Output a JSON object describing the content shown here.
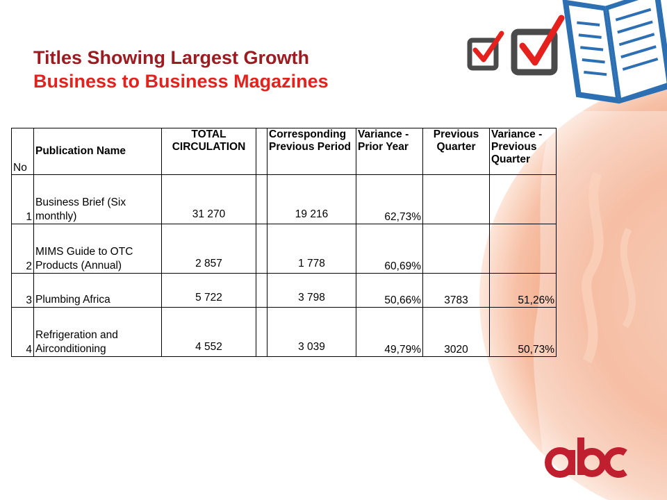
{
  "slide": {
    "title_line1": "Titles Showing Largest Growth",
    "title_line2": "Business to Business Magazines"
  },
  "table": {
    "headers": {
      "no": "No",
      "publication_name": "Publication Name",
      "total_circulation": "TOTAL CIRCULATION",
      "corresponding_previous_period": "Corresponding Previous Period",
      "variance_prior_year": "Variance - Prior Year",
      "previous_quarter": "Previous Quarter",
      "variance_previous_quarter": "Variance - Previous Quarter"
    },
    "rows": [
      {
        "no": "1",
        "name": "Business Brief (Six monthly)",
        "total": "31 270",
        "corresponding": "19 216",
        "variance_py": "62,73%",
        "prev_quarter": "",
        "variance_pq": ""
      },
      {
        "no": "2",
        "name": "MIMS Guide to OTC Products (Annual)",
        "total": "2 857",
        "corresponding": "1 778",
        "variance_py": "60,69%",
        "prev_quarter": "",
        "variance_pq": ""
      },
      {
        "no": "3",
        "name": "Plumbing Africa",
        "total": "5 722",
        "corresponding": "3 798",
        "variance_py": "50,66%",
        "prev_quarter": "3783",
        "variance_pq": "51,26%"
      },
      {
        "no": "4",
        "name": "Refrigeration and Airconditioning",
        "total": "4 552",
        "corresponding": "3 039",
        "variance_py": "49,79%",
        "prev_quarter": "3020",
        "variance_pq": "50,73%"
      }
    ]
  },
  "icons": {
    "checkbox": "checkbox-tick-icon",
    "book": "open-book-icon",
    "logo": "abc-logo"
  },
  "colors": {
    "title_dark_red": "#9c1b20",
    "title_red": "#e4211d",
    "accent_orange": "#e8672e",
    "book_blue": "#2c6fb3"
  }
}
